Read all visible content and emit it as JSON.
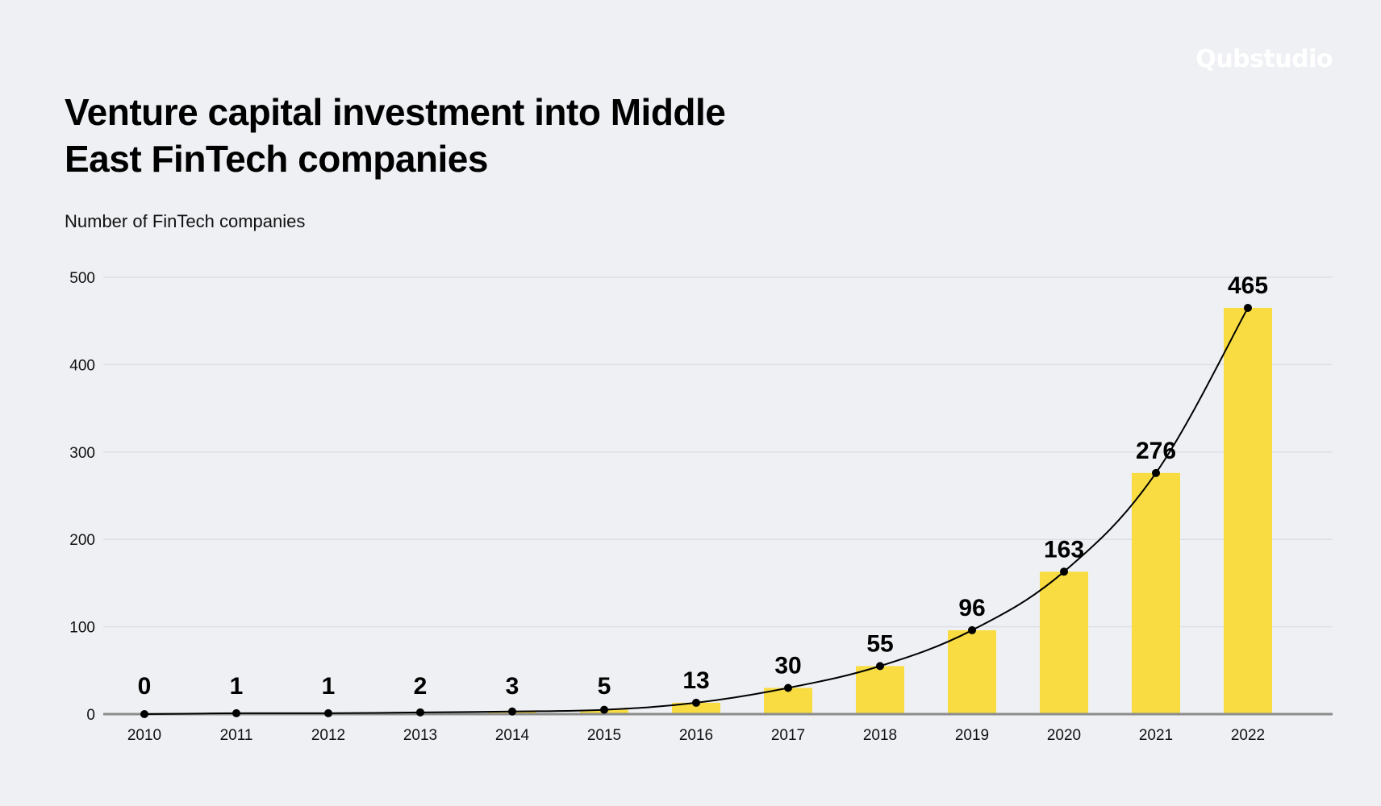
{
  "brand": {
    "logo_text": "Qubstudio"
  },
  "title": "Venture capital investment into Middle East FinTech companies",
  "subtitle": "Number of FinTech companies",
  "colors": {
    "bar": "#f8dc42",
    "line": "#000000",
    "grid": "#dcdfe5",
    "baseline": "#8c8c8c",
    "background": "#eef0f4"
  },
  "chart_data": {
    "type": "bar",
    "title": "Venture capital investment into Middle East FinTech companies",
    "ylabel": "Number of FinTech companies",
    "xlabel": "",
    "categories": [
      "2010",
      "2011",
      "2012",
      "2013",
      "2014",
      "2015",
      "2016",
      "2017",
      "2018",
      "2019",
      "2020",
      "2021",
      "2022"
    ],
    "values": [
      0,
      1,
      1,
      2,
      3,
      5,
      13,
      30,
      55,
      96,
      163,
      276,
      465
    ],
    "ylim": [
      0,
      500
    ],
    "yticks": [
      0,
      100,
      200,
      300,
      400,
      500
    ],
    "grid": true,
    "overlay_line": true,
    "data_labels": true
  }
}
